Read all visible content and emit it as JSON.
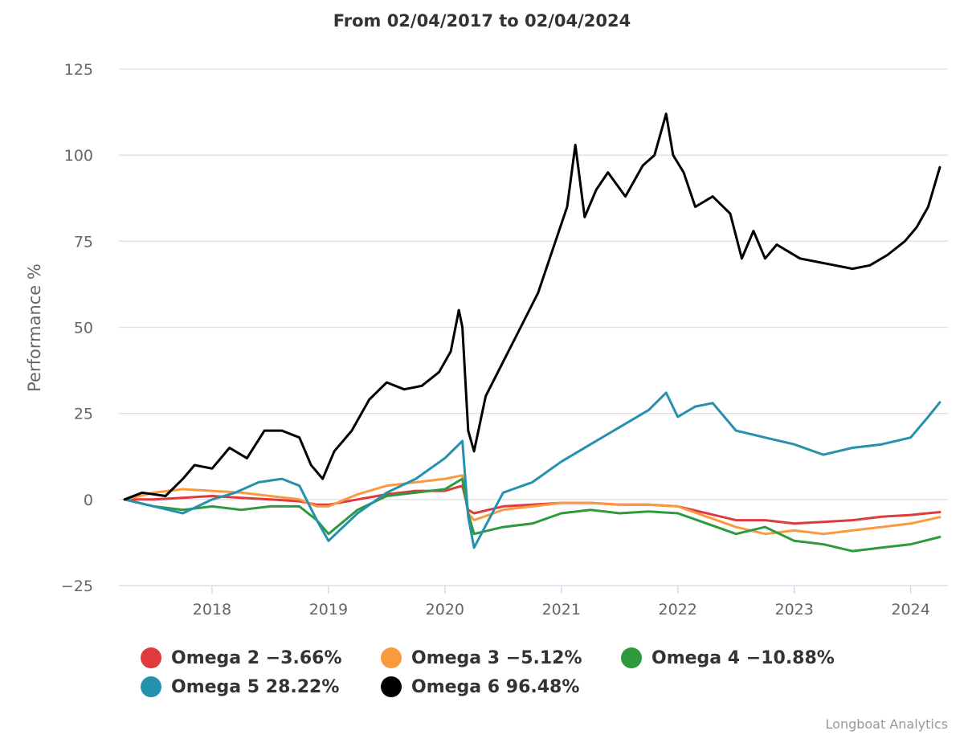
{
  "title": "From 02/04/2017 to 02/04/2024",
  "credits": "Longboat Analytics",
  "chart_data": {
    "type": "line",
    "title": "From 02/04/2017 to 02/04/2024",
    "xlabel": "",
    "ylabel": "Performance %",
    "xlim": [
      2017.2,
      2024.32
    ],
    "ylim": [
      -25,
      125
    ],
    "yticks": [
      -25,
      0,
      25,
      50,
      75,
      100,
      125
    ],
    "xticks": [
      "2018",
      "2019",
      "2020",
      "2021",
      "2022",
      "2023",
      "2024"
    ],
    "grid": true,
    "legend_position": "bottom",
    "series": [
      {
        "name": "Omega 2",
        "legend_label": "Omega 2 −3.66%",
        "color": "#e0393e",
        "x": [
          2017.25,
          2017.5,
          2017.75,
          2018.0,
          2018.25,
          2018.5,
          2018.75,
          2018.9,
          2019.0,
          2019.25,
          2019.5,
          2019.75,
          2020.0,
          2020.15,
          2020.2,
          2020.25,
          2020.5,
          2020.75,
          2021.0,
          2021.25,
          2021.5,
          2021.75,
          2022.0,
          2022.25,
          2022.5,
          2022.75,
          2023.0,
          2023.25,
          2023.5,
          2023.75,
          2024.0,
          2024.25
        ],
        "y": [
          0,
          0,
          0.5,
          1,
          0.5,
          0,
          -0.5,
          -1.5,
          -1.5,
          0,
          1.5,
          2.5,
          2.5,
          4,
          -3,
          -4,
          -2,
          -1.5,
          -1,
          -1,
          -1.5,
          -1.5,
          -2,
          -4,
          -6,
          -6,
          -7,
          -6.5,
          -6,
          -5,
          -4.5,
          -3.66
        ]
      },
      {
        "name": "Omega 3",
        "legend_label": "Omega 3 −5.12%",
        "color": "#fa9a3f",
        "x": [
          2017.25,
          2017.5,
          2017.75,
          2018.0,
          2018.25,
          2018.5,
          2018.75,
          2018.9,
          2019.0,
          2019.25,
          2019.5,
          2019.75,
          2020.0,
          2020.15,
          2020.2,
          2020.25,
          2020.5,
          2020.75,
          2021.0,
          2021.25,
          2021.5,
          2021.75,
          2022.0,
          2022.25,
          2022.5,
          2022.75,
          2023.0,
          2023.25,
          2023.5,
          2023.75,
          2024.0,
          2024.25
        ],
        "y": [
          0,
          2,
          3,
          2.5,
          2,
          1,
          0,
          -2,
          -2,
          1.5,
          4,
          5,
          6,
          7,
          -4,
          -6,
          -3,
          -2,
          -1,
          -1,
          -1.5,
          -1.5,
          -2,
          -5,
          -8,
          -10,
          -9,
          -10,
          -9,
          -8,
          -7,
          -5.12
        ]
      },
      {
        "name": "Omega 4",
        "legend_label": "Omega 4 −10.88%",
        "color": "#2e9a3e",
        "x": [
          2017.25,
          2017.5,
          2017.75,
          2018.0,
          2018.25,
          2018.5,
          2018.75,
          2018.9,
          2019.0,
          2019.25,
          2019.5,
          2019.75,
          2020.0,
          2020.15,
          2020.2,
          2020.25,
          2020.5,
          2020.75,
          2021.0,
          2021.25,
          2021.5,
          2021.75,
          2022.0,
          2022.25,
          2022.5,
          2022.75,
          2023.0,
          2023.25,
          2023.5,
          2023.75,
          2024.0,
          2024.25
        ],
        "y": [
          0,
          -2,
          -3,
          -2,
          -3,
          -2,
          -2,
          -6,
          -10,
          -3,
          1,
          2,
          3,
          6,
          -4,
          -10,
          -8,
          -7,
          -4,
          -3,
          -4,
          -3.5,
          -4,
          -7,
          -10,
          -8,
          -12,
          -13,
          -15,
          -14,
          -13,
          -10.88
        ]
      },
      {
        "name": "Omega 5",
        "legend_label": "Omega 5 28.22%",
        "color": "#2591ad",
        "x": [
          2017.25,
          2017.5,
          2017.75,
          2018.0,
          2018.2,
          2018.4,
          2018.6,
          2018.75,
          2018.9,
          2019.0,
          2019.25,
          2019.5,
          2019.75,
          2020.0,
          2020.15,
          2020.2,
          2020.25,
          2020.5,
          2020.75,
          2021.0,
          2021.25,
          2021.5,
          2021.75,
          2021.9,
          2022.0,
          2022.15,
          2022.3,
          2022.5,
          2022.75,
          2023.0,
          2023.25,
          2023.5,
          2023.75,
          2024.0,
          2024.15,
          2024.25
        ],
        "y": [
          0,
          -2,
          -4,
          0,
          2,
          5,
          6,
          4,
          -6,
          -12,
          -4,
          2,
          6,
          12,
          17,
          -5,
          -14,
          2,
          5,
          11,
          16,
          21,
          26,
          31,
          24,
          27,
          28,
          20,
          18,
          16,
          13,
          15,
          16,
          18,
          24,
          28.22
        ]
      },
      {
        "name": "Omega 6",
        "legend_label": "Omega 6 96.48%",
        "color": "#000000",
        "x": [
          2017.25,
          2017.4,
          2017.6,
          2017.75,
          2017.85,
          2018.0,
          2018.15,
          2018.3,
          2018.45,
          2018.6,
          2018.75,
          2018.85,
          2018.95,
          2019.05,
          2019.2,
          2019.35,
          2019.5,
          2019.65,
          2019.8,
          2019.95,
          2020.05,
          2020.12,
          2020.15,
          2020.2,
          2020.25,
          2020.35,
          2020.5,
          2020.65,
          2020.8,
          2020.95,
          2021.05,
          2021.12,
          2021.2,
          2021.3,
          2021.4,
          2021.55,
          2021.7,
          2021.8,
          2021.9,
          2021.96,
          2022.05,
          2022.15,
          2022.3,
          2022.45,
          2022.55,
          2022.65,
          2022.75,
          2022.85,
          2022.95,
          2023.05,
          2023.2,
          2023.35,
          2023.5,
          2023.65,
          2023.8,
          2023.95,
          2024.05,
          2024.15,
          2024.25
        ],
        "y": [
          0,
          2,
          1,
          6,
          10,
          9,
          15,
          12,
          20,
          20,
          18,
          10,
          6,
          14,
          20,
          29,
          34,
          32,
          33,
          37,
          43,
          55,
          50,
          20,
          14,
          30,
          40,
          50,
          60,
          75,
          85,
          103,
          82,
          90,
          95,
          88,
          97,
          100,
          112,
          100,
          95,
          85,
          88,
          83,
          70,
          78,
          70,
          74,
          72,
          70,
          69,
          68,
          67,
          68,
          71,
          75,
          79,
          85,
          96.48
        ]
      }
    ]
  }
}
